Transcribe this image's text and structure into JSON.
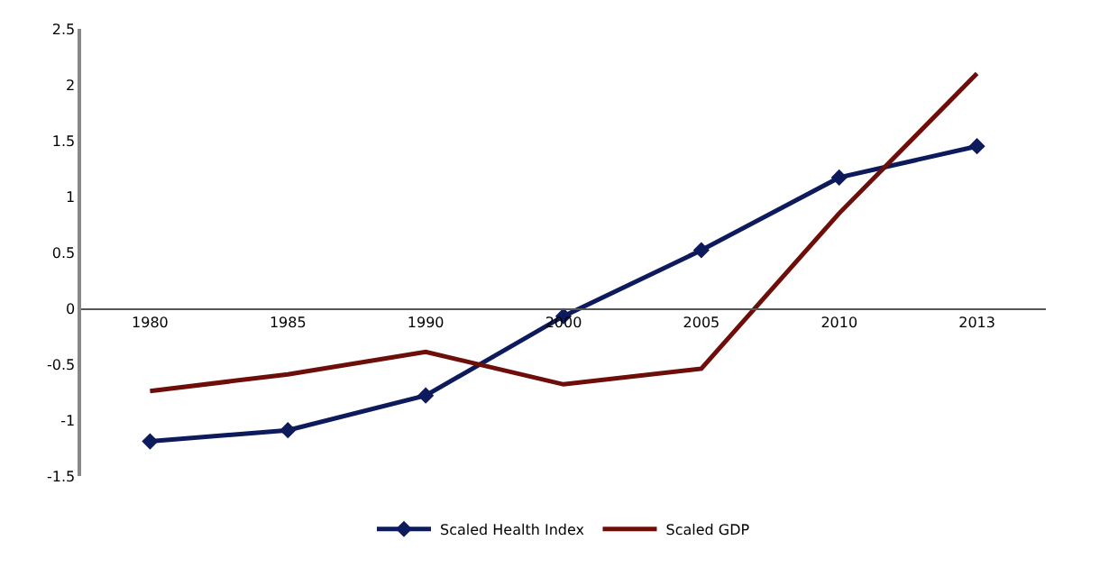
{
  "chart_data": {
    "type": "line",
    "categories": [
      "1980",
      "1985",
      "1990",
      "2000",
      "2005",
      "2010",
      "2013"
    ],
    "series": [
      {
        "name": "Scaled Health Index",
        "color": "#0d1a5c",
        "marker": "diamond",
        "values": [
          -1.19,
          -1.09,
          -0.78,
          -0.07,
          0.52,
          1.17,
          1.45
        ]
      },
      {
        "name": "Scaled GDP",
        "color": "#6e0e0a",
        "marker": "none",
        "values": [
          -0.74,
          -0.59,
          -0.39,
          -0.68,
          -0.54,
          0.85,
          2.1
        ]
      }
    ],
    "ylim": [
      -1.5,
      2.5
    ],
    "yticks": [
      -1.5,
      -1,
      -0.5,
      0,
      0.5,
      1,
      1.5,
      2,
      2.5
    ],
    "legend": "bottom"
  }
}
